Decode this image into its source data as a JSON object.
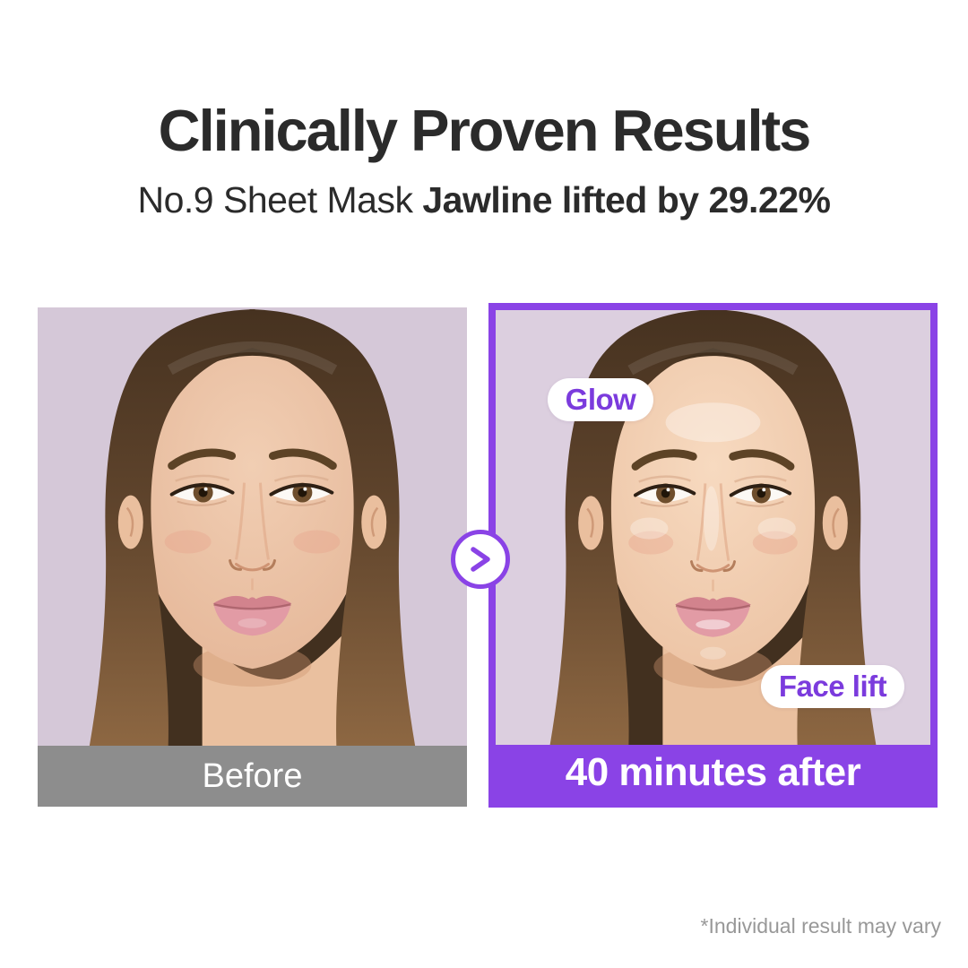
{
  "header": {
    "title": "Clinically Proven Results",
    "subtitle_regular": "No.9 Sheet Mask ",
    "subtitle_bold": "Jawline lifted by 29.22%"
  },
  "comparison": {
    "before": {
      "caption": "Before"
    },
    "after": {
      "caption": "40 minutes after",
      "badge_glow": "Glow",
      "badge_face_lift": "Face lift"
    },
    "arrow_icon": "chevron-right"
  },
  "disclaimer": "*Individual result may vary",
  "colors": {
    "accent_purple": "#8a43e6",
    "badge_text": "#7b3bdd",
    "caption_gray": "#8d8d8d",
    "title_text": "#2b2b2b",
    "disclaimer_text": "#989898",
    "photo_bg_before": "#d5c8d8",
    "photo_bg_after": "#dccfdf"
  }
}
